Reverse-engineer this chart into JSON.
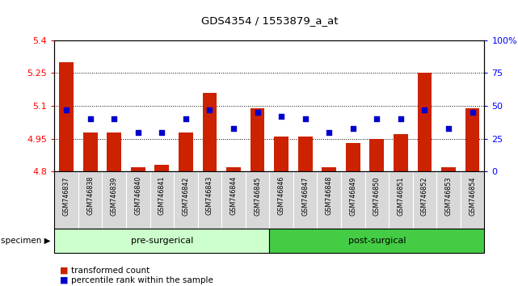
{
  "title": "GDS4354 / 1553879_a_at",
  "samples": [
    "GSM746837",
    "GSM746838",
    "GSM746839",
    "GSM746840",
    "GSM746841",
    "GSM746842",
    "GSM746843",
    "GSM746844",
    "GSM746845",
    "GSM746846",
    "GSM746847",
    "GSM746848",
    "GSM746849",
    "GSM746850",
    "GSM746851",
    "GSM746852",
    "GSM746853",
    "GSM746854"
  ],
  "transformed_count": [
    5.3,
    4.98,
    4.98,
    4.82,
    4.83,
    4.98,
    5.16,
    4.82,
    5.09,
    4.96,
    4.96,
    4.82,
    4.93,
    4.95,
    4.97,
    5.25,
    4.82,
    5.09
  ],
  "percentile_rank": [
    47,
    40,
    40,
    30,
    30,
    40,
    47,
    33,
    45,
    42,
    40,
    30,
    33,
    40,
    40,
    47,
    33,
    45
  ],
  "pre_surgical_count": 9,
  "post_surgical_count": 9,
  "ylim_left": [
    4.8,
    5.4
  ],
  "ylim_right": [
    0,
    100
  ],
  "yticks_left": [
    4.8,
    4.95,
    5.1,
    5.25,
    5.4
  ],
  "ytick_labels_left": [
    "4.8",
    "4.95",
    "5.1",
    "5.25",
    "5.4"
  ],
  "yticks_right": [
    0,
    25,
    50,
    75,
    100
  ],
  "ytick_labels_right": [
    "0",
    "25",
    "50",
    "75",
    "100%"
  ],
  "bar_color": "#cc2200",
  "dot_color": "#0000cc",
  "pre_surgical_color": "#ccffcc",
  "post_surgical_color": "#44cc44",
  "label_bg_color": "#d8d8d8",
  "specimen_label": "specimen",
  "pre_surgical_label": "pre-surgerical",
  "post_surgical_label": "post-surgical",
  "legend_bar_label": "transformed count",
  "legend_dot_label": "percentile rank within the sample",
  "bar_bottom": 4.8
}
